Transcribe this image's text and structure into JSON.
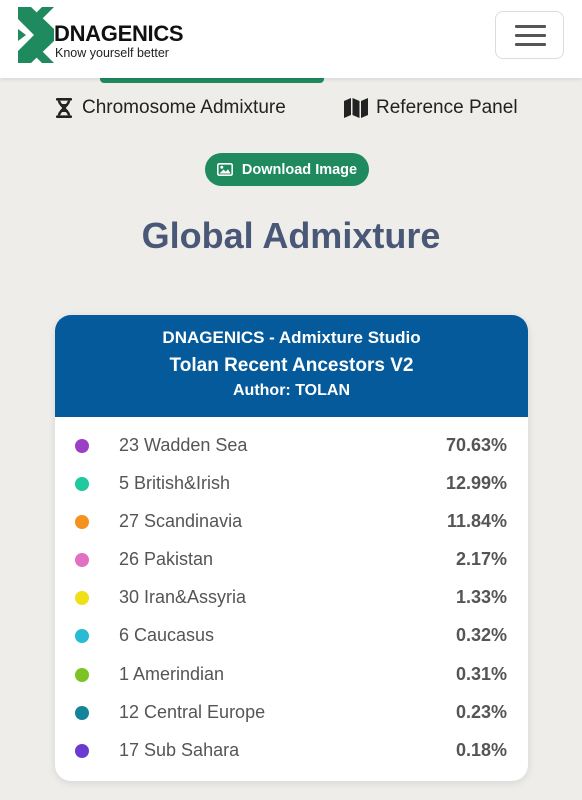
{
  "header": {
    "brand_name": "DNAGENICS",
    "tagline": "Know yourself better",
    "brand_color": "#1e8a5d",
    "menu_icon": "hamburger-menu-icon"
  },
  "nav": {
    "links": [
      {
        "label": "Chromosome Admixture",
        "icon": "chromosome-icon"
      },
      {
        "label": "Reference Panel",
        "icon": "map-icon"
      }
    ]
  },
  "actions": {
    "download_label": "Download Image",
    "download_icon": "image-icon"
  },
  "page": {
    "title": "Global Admixture"
  },
  "card": {
    "studio": "DNAGENICS - Admixture Studio",
    "model": "Tolan Recent Ancestors V2",
    "author": "Author: TOLAN",
    "header_color": "#055a9b",
    "results": [
      {
        "label": "23 Wadden Sea",
        "value": "70.63%",
        "color": "#9b3fc6"
      },
      {
        "label": "5 British&Irish",
        "value": "12.99%",
        "color": "#1fc99d"
      },
      {
        "label": "27 Scandinavia",
        "value": "11.84%",
        "color": "#f5921e"
      },
      {
        "label": "26 Pakistan",
        "value": "2.17%",
        "color": "#e170c2"
      },
      {
        "label": "30 Iran&Assyria",
        "value": "1.33%",
        "color": "#f0e01a"
      },
      {
        "label": "6 Caucasus",
        "value": "0.32%",
        "color": "#27bcd4"
      },
      {
        "label": "1 Amerindian",
        "value": "0.31%",
        "color": "#7dc324"
      },
      {
        "label": "12 Central Europe",
        "value": "0.23%",
        "color": "#13849a"
      },
      {
        "label": "17 Sub Sahara",
        "value": "0.18%",
        "color": "#6b3ad0"
      }
    ]
  }
}
